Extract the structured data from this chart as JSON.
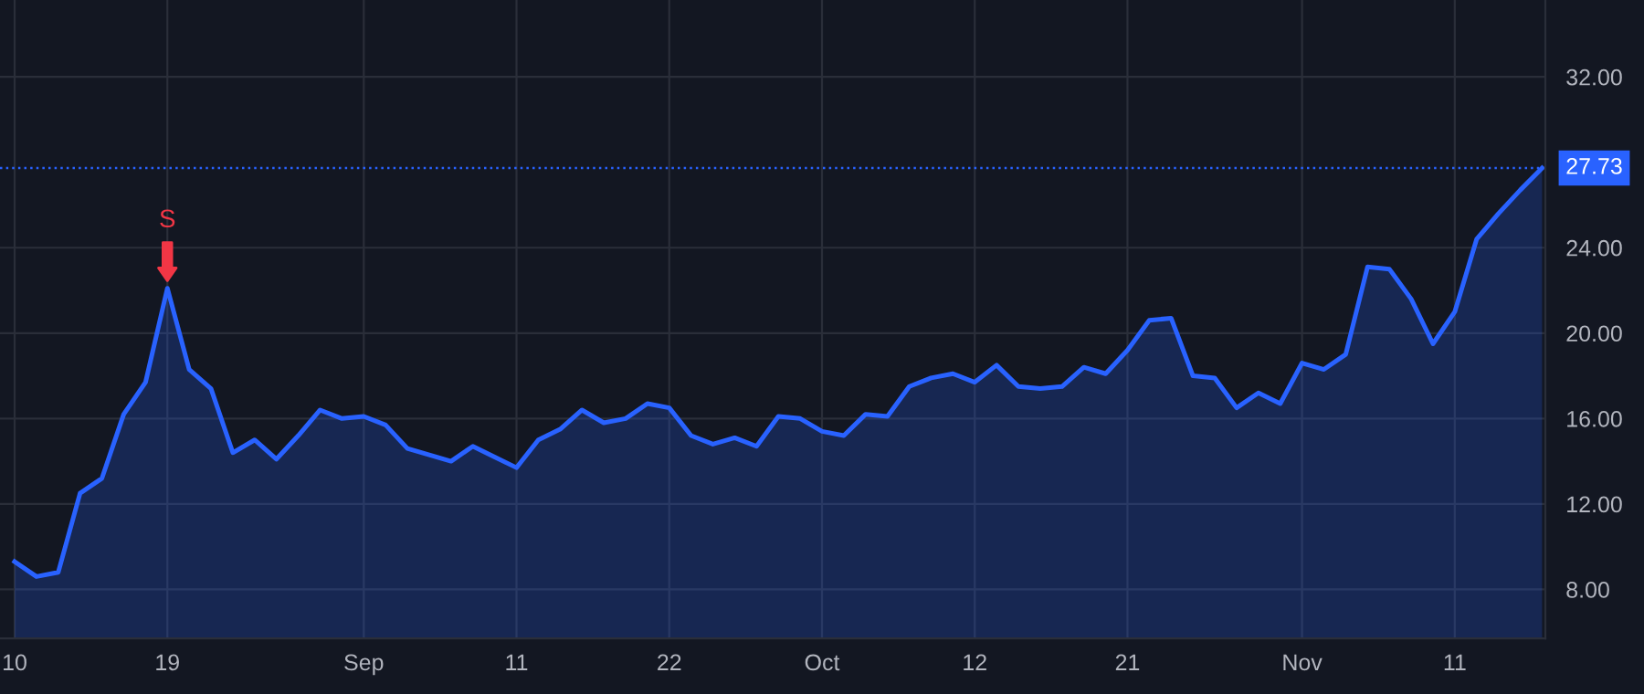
{
  "chart_data": {
    "type": "area",
    "categories": [
      "10",
      null,
      null,
      null,
      null,
      null,
      null,
      "19",
      null,
      null,
      null,
      null,
      null,
      null,
      null,
      null,
      "Sep",
      null,
      null,
      null,
      null,
      null,
      null,
      "11",
      null,
      null,
      null,
      null,
      null,
      null,
      "22",
      null,
      null,
      null,
      null,
      null,
      null,
      "Oct",
      null,
      null,
      null,
      null,
      null,
      null,
      "12",
      null,
      null,
      null,
      null,
      null,
      null,
      "21",
      null,
      null,
      null,
      null,
      null,
      null,
      null,
      "Nov",
      null,
      null,
      null,
      null,
      null,
      null,
      "11",
      null,
      null,
      null,
      null
    ],
    "series": [
      {
        "color": "#2962ff",
        "values": [
          9.3,
          8.6,
          8.8,
          12.5,
          13.2,
          16.2,
          17.7,
          22.1,
          18.3,
          17.4,
          14.4,
          15.0,
          14.1,
          15.2,
          16.4,
          16.0,
          16.1,
          15.7,
          14.6,
          14.3,
          14.0,
          14.7,
          14.2,
          13.7,
          15.0,
          15.5,
          16.4,
          15.8,
          16.0,
          16.7,
          16.5,
          15.2,
          14.8,
          15.1,
          14.7,
          16.1,
          16.0,
          15.4,
          15.2,
          16.2,
          16.1,
          17.5,
          17.9,
          18.1,
          17.7,
          18.5,
          17.5,
          17.4,
          17.5,
          18.4,
          18.1,
          19.2,
          20.6,
          20.7,
          18.0,
          17.9,
          16.5,
          17.2,
          16.7,
          18.6,
          18.3,
          19.0,
          23.1,
          23.0,
          21.6,
          19.5,
          21.0,
          24.4,
          25.6,
          26.7,
          27.73
        ]
      }
    ],
    "ylim": [
      5.7,
      35.6
    ],
    "yticks": [
      {
        "value": 8,
        "label": "8.00"
      },
      {
        "value": 12,
        "label": "12.00"
      },
      {
        "value": 16,
        "label": "16.00"
      },
      {
        "value": 20,
        "label": "20.00"
      },
      {
        "value": 24,
        "label": "24.00"
      },
      {
        "value": 32,
        "label": "32.00"
      }
    ],
    "ref_lines": [
      {
        "axis": "y",
        "value": 27.73,
        "label": "27.73",
        "color": "#2962ff",
        "line_style": "dotted"
      }
    ],
    "annotations": [
      {
        "text": "S",
        "x": "19",
        "y": 22.1
      }
    ],
    "grid": true
  }
}
